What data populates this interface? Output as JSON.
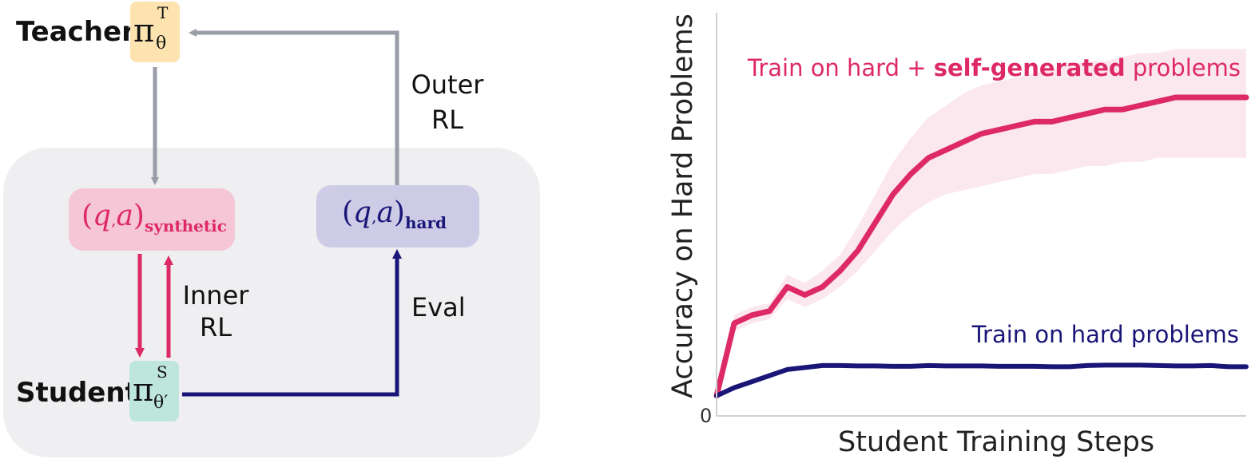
{
  "diagram": {
    "teacher": {
      "label": "Teacher",
      "symbol": "π",
      "sup": "T",
      "sub": "θ"
    },
    "student": {
      "label": "Student",
      "symbol": "π",
      "sup": "S",
      "sub": "θ′"
    },
    "synthetic_box": {
      "open": "(",
      "q": "q",
      "comma": ",",
      "a": "a",
      "close": ")",
      "subscript": "synthetic"
    },
    "hard_box": {
      "open": "(",
      "q": "q",
      "comma": ",",
      "a": "a",
      "close": ")",
      "subscript": "hard"
    },
    "outer_rl": {
      "line1": "Outer",
      "line2": "RL"
    },
    "inner_rl": {
      "line1": "Inner",
      "line2": "RL"
    },
    "eval": "Eval",
    "colors": {
      "teacher_box": "#fde3b0",
      "student_box": "#bfe6dc",
      "synthetic_box": "#f4c6d6",
      "hard_box": "#cdcbe6",
      "panel": "#efeff1",
      "gray_arrow": "#9a9da8",
      "pink": "#de2a64",
      "navy": "#1a1678"
    }
  },
  "chart_data": {
    "type": "line",
    "title": "",
    "xlabel": "Student Training Steps",
    "ylabel": "Accuracy on Hard Problems",
    "y_tick_zero": "0",
    "x": [
      0,
      1,
      2,
      3,
      4,
      5,
      6,
      7,
      8,
      9,
      10,
      11,
      12,
      13,
      14,
      15,
      16,
      17,
      18,
      19,
      20,
      21,
      22,
      23,
      24,
      25,
      26,
      27,
      28,
      29,
      30
    ],
    "series": [
      {
        "name_prefix": "Train on hard + ",
        "name_bold": "self-generated",
        "name_suffix": " problems",
        "color": "#de2a64",
        "band_color": "#fbe7ee",
        "values": [
          0.05,
          0.23,
          0.25,
          0.26,
          0.32,
          0.3,
          0.32,
          0.36,
          0.41,
          0.48,
          0.55,
          0.6,
          0.64,
          0.66,
          0.68,
          0.7,
          0.71,
          0.72,
          0.73,
          0.73,
          0.74,
          0.75,
          0.76,
          0.76,
          0.77,
          0.78,
          0.79,
          0.79,
          0.79,
          0.79,
          0.79
        ],
        "band_low": [
          0.05,
          0.21,
          0.23,
          0.24,
          0.29,
          0.27,
          0.29,
          0.32,
          0.36,
          0.41,
          0.46,
          0.5,
          0.53,
          0.55,
          0.56,
          0.57,
          0.58,
          0.59,
          0.6,
          0.6,
          0.61,
          0.62,
          0.62,
          0.63,
          0.63,
          0.64,
          0.64,
          0.64,
          0.64,
          0.64,
          0.64
        ],
        "band_high": [
          0.05,
          0.25,
          0.27,
          0.28,
          0.35,
          0.33,
          0.36,
          0.4,
          0.47,
          0.55,
          0.63,
          0.69,
          0.74,
          0.77,
          0.8,
          0.82,
          0.83,
          0.84,
          0.85,
          0.86,
          0.87,
          0.88,
          0.88,
          0.89,
          0.9,
          0.9,
          0.91,
          0.91,
          0.91,
          0.91,
          0.91
        ]
      },
      {
        "name": "Train on hard problems",
        "color": "#1a1678",
        "values": [
          0.05,
          0.07,
          0.085,
          0.1,
          0.115,
          0.12,
          0.125,
          0.125,
          0.124,
          0.124,
          0.123,
          0.123,
          0.125,
          0.124,
          0.124,
          0.124,
          0.123,
          0.123,
          0.123,
          0.122,
          0.122,
          0.125,
          0.126,
          0.126,
          0.126,
          0.125,
          0.124,
          0.124,
          0.125,
          0.122,
          0.122
        ]
      }
    ],
    "ylim": [
      0,
      1
    ],
    "xlim": [
      0,
      30
    ]
  }
}
